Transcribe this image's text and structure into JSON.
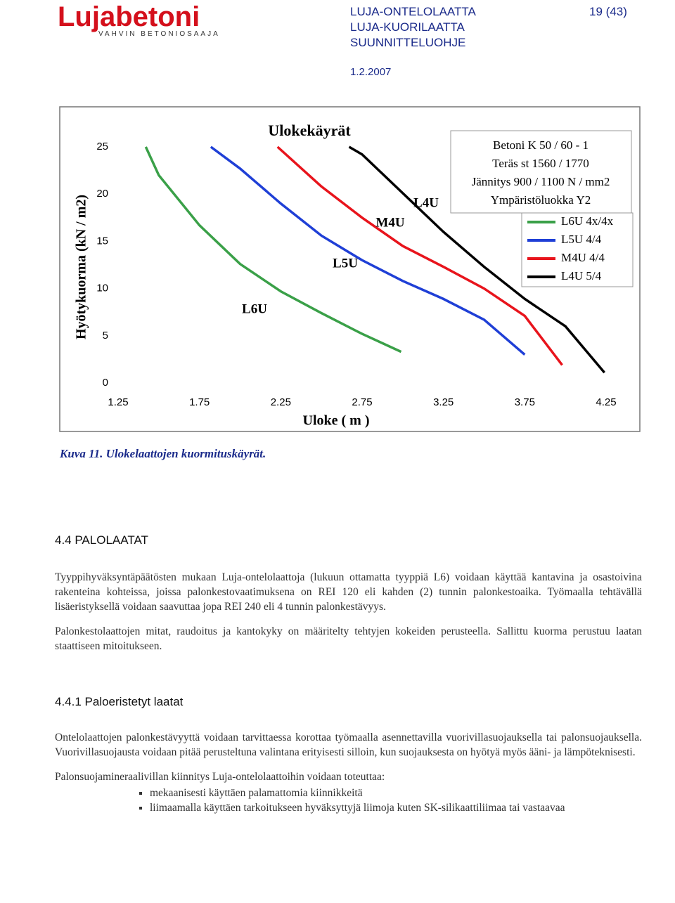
{
  "header": {
    "logo": "Lujabetoni",
    "tagline": "VAHVIN BETONIOSAAJA",
    "lines": [
      "LUJA-ONTELOLAATTA",
      "LUJA-KUORILAATTA",
      "SUUNNITTELUOHJE"
    ],
    "page": "19 (43)",
    "date": "1.2.2007"
  },
  "chart_data": {
    "type": "line",
    "title": "Ulokekäyrät",
    "x_label": "Uloke ( m )",
    "y_label": "Hyötykuorma (kN / m2)",
    "xlim": [
      1.25,
      4.25
    ],
    "xticks": [
      1.25,
      1.75,
      2.25,
      2.75,
      3.25,
      3.75,
      4.25
    ],
    "ylim": [
      0,
      25
    ],
    "yticks": [
      0,
      5,
      10,
      15,
      20,
      25
    ],
    "grid": false,
    "curve_labels": [
      "L6U",
      "L5U",
      "M4U",
      "L4U"
    ],
    "info_box": [
      "Betoni K 50 / 60 - 1",
      "Teräs st 1560 / 1770",
      "Jännitys 900 / 1100 N / mm2",
      "Ympäristöluokka Y2"
    ],
    "series": [
      {
        "name": "L6U 4x/4x",
        "color": "#3aa048",
        "x": [
          1.42,
          1.5,
          1.75,
          2.0,
          2.25,
          2.5,
          2.75,
          2.99
        ],
        "values": [
          25,
          22,
          16.7,
          12.6,
          9.7,
          7.4,
          5.2,
          3.3
        ]
      },
      {
        "name": "L5U 4/4",
        "color": "#1f3fd6",
        "x": [
          1.82,
          2.0,
          2.25,
          2.5,
          2.75,
          3.0,
          3.25,
          3.5,
          3.75
        ],
        "values": [
          25,
          22.7,
          19,
          15.6,
          13,
          10.8,
          8.9,
          6.7,
          3.0
        ]
      },
      {
        "name": "M4U 4/4",
        "color": "#e8141c",
        "x": [
          2.23,
          2.5,
          2.75,
          3.0,
          3.25,
          3.5,
          3.75,
          3.98
        ],
        "values": [
          25,
          20.8,
          17.5,
          14.5,
          12.3,
          10,
          7.1,
          1.9
        ]
      },
      {
        "name": "L4U 5/4",
        "color": "#000000",
        "x": [
          2.67,
          2.75,
          3.0,
          3.25,
          3.5,
          3.75,
          4.0,
          4.24
        ],
        "values": [
          25,
          24.2,
          20.1,
          16,
          12.3,
          8.9,
          6.0,
          1.1
        ]
      }
    ]
  },
  "caption": "Kuva 11. Ulokelaattojen kuormituskäyrät.",
  "section": {
    "heading": "4.4 PALOLAATAT",
    "paragraphs": [
      "Tyyppihyväksyntäpäätösten mukaan Luja-ontelolaattoja (lukuun ottamatta tyyppiä L6) voidaan käyttää kantavina ja osastoivina rakenteina kohteissa, joissa palonkestovaatimuksena on REI 120 eli kahden (2) tunnin palonkestoaika. Työmaalla tehtävällä lisäeristyksellä voidaan saavuttaa jopa REI 240 eli 4 tunnin palonkestävyys.",
      "Palonkestolaattojen mitat, raudoitus ja kantokyky on määritelty tehtyjen kokeiden perusteella. Sallittu kuorma perustuu laatan staattiseen mitoitukseen."
    ]
  },
  "subsection": {
    "heading": "4.4.1 Paloeristetyt laatat",
    "paragraphs": [
      "Ontelolaattojen palonkestävyyttä voidaan tarvittaessa korottaa työmaalla asennettavilla vuorivillasuojauksella tai palonsuojauksella. Vuorivillasuojausta voidaan pitää perusteltuna valintana erityisesti silloin, kun suojauksesta on hyötyä myös ääni- ja lämpöteknisesti.",
      "Palonsuojamineraalivillan kiinnitys Luja-ontelolaattoihin voidaan toteuttaa:"
    ],
    "list": [
      "mekaanisesti käyttäen palamattomia kiinnikkeitä",
      "liimaamalla käyttäen tarkoitukseen hyväksyttyjä liimoja kuten SK-silikaattiliimaa tai vastaavaa"
    ]
  }
}
